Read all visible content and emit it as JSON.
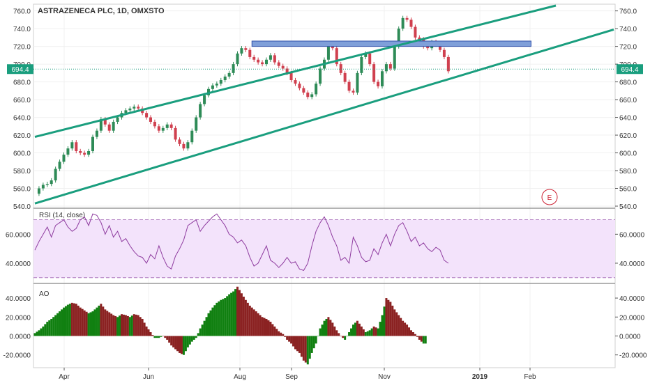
{
  "title": "ASTRAZENECA PLC, 1D, OMXSTO",
  "last_price_label": "694.4",
  "earnings_marker": "E",
  "colors": {
    "up": "#2e8b57",
    "down": "#d0404f",
    "channel": "#1a9e7e",
    "zone_fill": "#7f9fd9",
    "zone_stroke": "#2f4fa8",
    "rsi_line": "#8e3b9f",
    "rsi_band": "#f3e3fb",
    "ao_up": "#118011",
    "ao_down": "#8b2222",
    "last_price": "#1a9e7e",
    "grid": "#f0f0f0",
    "axis": "#555555"
  },
  "chart_data": [
    {
      "type": "candlestick",
      "title": "ASTRAZENECA PLC, 1D, OMXSTO",
      "x_tick_labels": [
        "Apr",
        "Jun",
        "Aug",
        "Sep",
        "Nov",
        "2019",
        "Feb"
      ],
      "y_tick_labels": [
        "540.0",
        "560.0",
        "580.0",
        "600.0",
        "620.0",
        "640.0",
        "660.0",
        "680.0",
        "700.0",
        "720.0",
        "740.0",
        "760.0"
      ],
      "ylim": [
        540,
        766
      ],
      "last_price": 694.4,
      "close_series": [
        [
          0,
          554
        ],
        [
          2,
          560
        ],
        [
          4,
          564
        ],
        [
          6,
          565
        ],
        [
          8,
          569
        ],
        [
          10,
          582
        ],
        [
          12,
          590
        ],
        [
          14,
          598
        ],
        [
          16,
          605
        ],
        [
          18,
          612
        ],
        [
          20,
          602
        ],
        [
          22,
          600
        ],
        [
          24,
          598
        ],
        [
          26,
          602
        ],
        [
          28,
          618
        ],
        [
          30,
          625
        ],
        [
          32,
          638
        ],
        [
          34,
          632
        ],
        [
          36,
          625
        ],
        [
          38,
          635
        ],
        [
          40,
          640
        ],
        [
          42,
          645
        ],
        [
          44,
          648
        ],
        [
          46,
          650
        ],
        [
          48,
          652
        ],
        [
          50,
          650
        ],
        [
          52,
          645
        ],
        [
          54,
          640
        ],
        [
          56,
          635
        ],
        [
          58,
          630
        ],
        [
          60,
          625
        ],
        [
          62,
          628
        ],
        [
          64,
          632
        ],
        [
          66,
          628
        ],
        [
          68,
          615
        ],
        [
          70,
          610
        ],
        [
          72,
          605
        ],
        [
          74,
          612
        ],
        [
          76,
          625
        ],
        [
          78,
          640
        ],
        [
          80,
          655
        ],
        [
          82,
          665
        ],
        [
          84,
          672
        ],
        [
          86,
          676
        ],
        [
          88,
          678
        ],
        [
          90,
          682
        ],
        [
          92,
          686
        ],
        [
          94,
          690
        ],
        [
          96,
          700
        ],
        [
          98,
          712
        ],
        [
          100,
          718
        ],
        [
          102,
          716
        ],
        [
          104,
          708
        ],
        [
          106,
          705
        ],
        [
          108,
          702
        ],
        [
          110,
          700
        ],
        [
          112,
          705
        ],
        [
          114,
          710
        ],
        [
          116,
          702
        ],
        [
          118,
          698
        ],
        [
          120,
          695
        ],
        [
          122,
          690
        ],
        [
          124,
          682
        ],
        [
          126,
          678
        ],
        [
          128,
          673
        ],
        [
          130,
          668
        ],
        [
          132,
          663
        ],
        [
          134,
          666
        ],
        [
          136,
          678
        ],
        [
          138,
          695
        ],
        [
          140,
          705
        ],
        [
          142,
          720
        ],
        [
          144,
          718
        ],
        [
          146,
          700
        ],
        [
          148,
          690
        ],
        [
          150,
          680
        ],
        [
          152,
          670
        ],
        [
          154,
          668
        ],
        [
          156,
          690
        ],
        [
          158,
          708
        ],
        [
          160,
          712
        ],
        [
          162,
          700
        ],
        [
          164,
          680
        ],
        [
          166,
          675
        ],
        [
          168,
          692
        ],
        [
          170,
          700
        ],
        [
          172,
          695
        ],
        [
          174,
          720
        ],
        [
          176,
          740
        ],
        [
          178,
          752
        ],
        [
          180,
          750
        ],
        [
          182,
          742
        ],
        [
          184,
          730
        ],
        [
          186,
          728
        ],
        [
          188,
          720
        ],
        [
          190,
          718
        ],
        [
          192,
          725
        ],
        [
          194,
          722
        ],
        [
          196,
          716
        ],
        [
          198,
          708
        ],
        [
          200,
          692
        ]
      ],
      "horizontal_zone": {
        "from": 720,
        "to": 726
      },
      "trendlines": [
        {
          "name": "upper-channel",
          "from": [
            0,
            618
          ],
          "to": [
            252,
            766
          ]
        },
        {
          "name": "lower-channel",
          "from": [
            0,
            543
          ],
          "to": [
            280,
            739
          ]
        }
      ]
    },
    {
      "type": "line",
      "title": "RSI (14, close)",
      "y_tick_labels": [
        "40.0000",
        "60.0000"
      ],
      "ylim": [
        27,
        77
      ],
      "band": [
        30,
        70
      ],
      "values": [
        [
          0,
          49
        ],
        [
          2,
          55
        ],
        [
          4,
          60
        ],
        [
          6,
          65
        ],
        [
          8,
          58
        ],
        [
          10,
          66
        ],
        [
          12,
          68
        ],
        [
          14,
          70
        ],
        [
          16,
          65
        ],
        [
          18,
          62
        ],
        [
          20,
          64
        ],
        [
          22,
          70
        ],
        [
          24,
          72
        ],
        [
          26,
          66
        ],
        [
          28,
          74
        ],
        [
          30,
          73
        ],
        [
          32,
          68
        ],
        [
          34,
          60
        ],
        [
          36,
          66
        ],
        [
          38,
          58
        ],
        [
          40,
          62
        ],
        [
          42,
          55
        ],
        [
          44,
          57
        ],
        [
          46,
          52
        ],
        [
          48,
          48
        ],
        [
          50,
          45
        ],
        [
          52,
          44
        ],
        [
          54,
          40
        ],
        [
          56,
          46
        ],
        [
          58,
          43
        ],
        [
          60,
          52
        ],
        [
          62,
          44
        ],
        [
          64,
          38
        ],
        [
          66,
          36
        ],
        [
          68,
          45
        ],
        [
          70,
          50
        ],
        [
          72,
          56
        ],
        [
          74,
          66
        ],
        [
          76,
          68
        ],
        [
          78,
          70
        ],
        [
          80,
          62
        ],
        [
          82,
          66
        ],
        [
          84,
          69
        ],
        [
          86,
          72
        ],
        [
          88,
          74
        ],
        [
          90,
          70
        ],
        [
          92,
          66
        ],
        [
          94,
          60
        ],
        [
          96,
          58
        ],
        [
          98,
          54
        ],
        [
          100,
          56
        ],
        [
          102,
          52
        ],
        [
          104,
          44
        ],
        [
          106,
          38
        ],
        [
          108,
          40
        ],
        [
          110,
          46
        ],
        [
          112,
          52
        ],
        [
          114,
          42
        ],
        [
          116,
          40
        ],
        [
          118,
          37
        ],
        [
          120,
          40
        ],
        [
          122,
          44
        ],
        [
          124,
          40
        ],
        [
          126,
          41
        ],
        [
          128,
          36
        ],
        [
          130,
          35
        ],
        [
          132,
          40
        ],
        [
          134,
          52
        ],
        [
          136,
          62
        ],
        [
          138,
          68
        ],
        [
          140,
          72
        ],
        [
          142,
          66
        ],
        [
          144,
          58
        ],
        [
          146,
          52
        ],
        [
          148,
          42
        ],
        [
          150,
          44
        ],
        [
          152,
          40
        ],
        [
          154,
          58
        ],
        [
          156,
          52
        ],
        [
          158,
          44
        ],
        [
          160,
          41
        ],
        [
          162,
          42
        ],
        [
          164,
          50
        ],
        [
          166,
          46
        ],
        [
          168,
          54
        ],
        [
          170,
          60
        ],
        [
          172,
          52
        ],
        [
          174,
          60
        ],
        [
          176,
          66
        ],
        [
          178,
          68
        ],
        [
          180,
          62
        ],
        [
          182,
          55
        ],
        [
          184,
          58
        ],
        [
          186,
          52
        ],
        [
          188,
          54
        ],
        [
          190,
          50
        ],
        [
          192,
          48
        ],
        [
          194,
          51
        ],
        [
          196,
          49
        ],
        [
          198,
          42
        ],
        [
          200,
          40
        ]
      ]
    },
    {
      "type": "bar",
      "title": "AO",
      "y_tick_labels": [
        "-20.0000",
        "0.0000",
        "20.0000",
        "40.0000"
      ],
      "ylim": [
        -32,
        54
      ],
      "values": [
        [
          0,
          3
        ],
        [
          2,
          6
        ],
        [
          4,
          10
        ],
        [
          6,
          15
        ],
        [
          8,
          18
        ],
        [
          10,
          22
        ],
        [
          12,
          26
        ],
        [
          14,
          30
        ],
        [
          16,
          33
        ],
        [
          18,
          35
        ],
        [
          20,
          34
        ],
        [
          22,
          30
        ],
        [
          24,
          27
        ],
        [
          26,
          24
        ],
        [
          28,
          26
        ],
        [
          30,
          30
        ],
        [
          32,
          34
        ],
        [
          34,
          28
        ],
        [
          36,
          25
        ],
        [
          38,
          22
        ],
        [
          40,
          20
        ],
        [
          42,
          23
        ],
        [
          44,
          22
        ],
        [
          46,
          20
        ],
        [
          48,
          23
        ],
        [
          50,
          22
        ],
        [
          52,
          18
        ],
        [
          54,
          10
        ],
        [
          56,
          4
        ],
        [
          58,
          -2
        ],
        [
          60,
          -2
        ],
        [
          62,
          0
        ],
        [
          64,
          -4
        ],
        [
          66,
          -10
        ],
        [
          68,
          -14
        ],
        [
          70,
          -18
        ],
        [
          72,
          -20
        ],
        [
          74,
          -12
        ],
        [
          76,
          -6
        ],
        [
          78,
          -2
        ],
        [
          80,
          8
        ],
        [
          82,
          16
        ],
        [
          84,
          24
        ],
        [
          86,
          30
        ],
        [
          88,
          35
        ],
        [
          90,
          38
        ],
        [
          92,
          40
        ],
        [
          94,
          44
        ],
        [
          96,
          47
        ],
        [
          98,
          52
        ],
        [
          100,
          45
        ],
        [
          102,
          38
        ],
        [
          104,
          32
        ],
        [
          106,
          28
        ],
        [
          108,
          24
        ],
        [
          110,
          20
        ],
        [
          112,
          18
        ],
        [
          114,
          15
        ],
        [
          116,
          10
        ],
        [
          118,
          5
        ],
        [
          120,
          2
        ],
        [
          122,
          -4
        ],
        [
          124,
          -8
        ],
        [
          126,
          -14
        ],
        [
          128,
          -18
        ],
        [
          130,
          -26
        ],
        [
          132,
          -30
        ],
        [
          134,
          -18
        ],
        [
          136,
          -8
        ],
        [
          138,
          8
        ],
        [
          140,
          16
        ],
        [
          142,
          20
        ],
        [
          144,
          14
        ],
        [
          146,
          6
        ],
        [
          148,
          0
        ],
        [
          150,
          -4
        ],
        [
          152,
          4
        ],
        [
          154,
          12
        ],
        [
          156,
          16
        ],
        [
          158,
          10
        ],
        [
          160,
          4
        ],
        [
          162,
          6
        ],
        [
          164,
          10
        ],
        [
          166,
          8
        ],
        [
          168,
          22
        ],
        [
          170,
          40
        ],
        [
          172,
          36
        ],
        [
          174,
          28
        ],
        [
          176,
          22
        ],
        [
          178,
          16
        ],
        [
          180,
          12
        ],
        [
          182,
          6
        ],
        [
          184,
          2
        ],
        [
          186,
          -4
        ],
        [
          188,
          -8
        ],
        [
          190,
          -8
        ]
      ]
    }
  ]
}
